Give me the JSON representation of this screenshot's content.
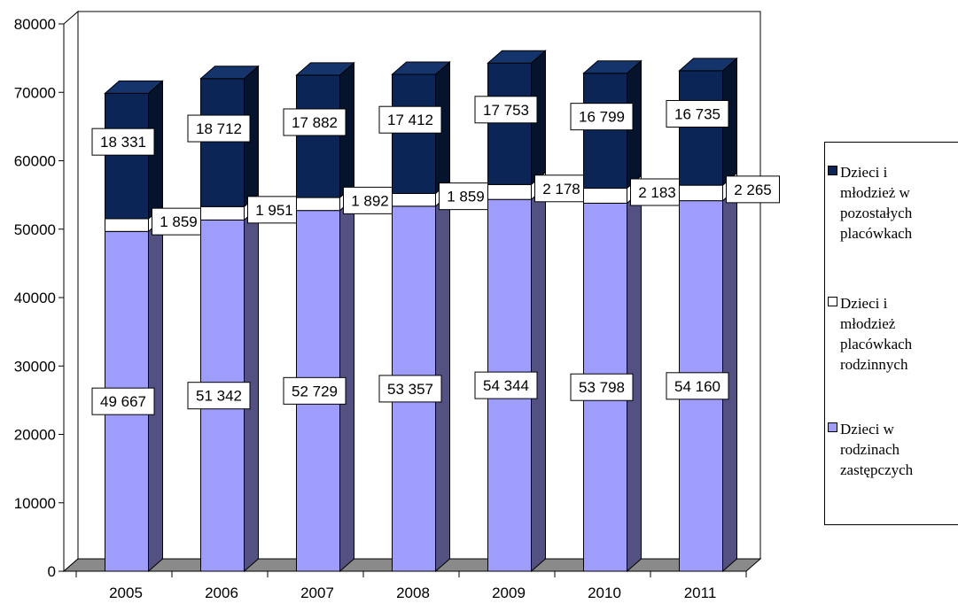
{
  "colors": {
    "top_face": "#0a2556",
    "top_side": "#05132d",
    "top_cap": "#16346c",
    "mid_face": "#ffffff",
    "mid_side": "#ffffff",
    "bot_face": "#9e9dfc",
    "bot_side": "#535082",
    "floor": "#8a8a8a",
    "wall": "#ffffff"
  },
  "chart_data": {
    "type": "bar",
    "stacked": true,
    "three_d": true,
    "categories": [
      "2005",
      "2006",
      "2007",
      "2008",
      "2009",
      "2010",
      "2011"
    ],
    "series": [
      {
        "name": "Dzieci w rodzinach zastępczych",
        "values": [
          49667,
          51342,
          52729,
          53357,
          54344,
          53798,
          54160
        ],
        "labels": [
          "49 667",
          "51 342",
          "52 729",
          "53 357",
          "54 344",
          "53 798",
          "54 160"
        ]
      },
      {
        "name": "Dzieci i młodzież placówkach rodzinnych",
        "values": [
          1859,
          1951,
          1892,
          1859,
          2178,
          2183,
          2265
        ],
        "labels": [
          "1 859",
          "1 951",
          "1 892",
          "1 859",
          "2 178",
          "2 183",
          "2 265"
        ]
      },
      {
        "name": "Dzieci i młodzież w pozostałych placówkach",
        "values": [
          18331,
          18712,
          17882,
          17412,
          17753,
          16799,
          16735
        ],
        "labels": [
          "18 331",
          "18 712",
          "17 882",
          "17 412",
          "17 753",
          "16 799",
          "16 735"
        ]
      }
    ],
    "ylim": [
      0,
      80000
    ],
    "yticks": [
      "0",
      "10000",
      "20000",
      "30000",
      "40000",
      "50000",
      "60000",
      "70000",
      "80000"
    ],
    "grid": false,
    "legend_position": "right"
  },
  "legend": {
    "items": [
      {
        "label_lines": [
          "Dzieci i",
          "młodzież w",
          "pozostałych",
          "placówkach"
        ],
        "color": "#0a2556"
      },
      {
        "label_lines": [
          "Dzieci i",
          "młodzież",
          "placówkach",
          "rodzinnych"
        ],
        "color": "#ffffff"
      },
      {
        "label_lines": [
          "Dzieci w",
          "rodzinach",
          "zastępczych"
        ],
        "color": "#9e9dfc"
      }
    ]
  }
}
